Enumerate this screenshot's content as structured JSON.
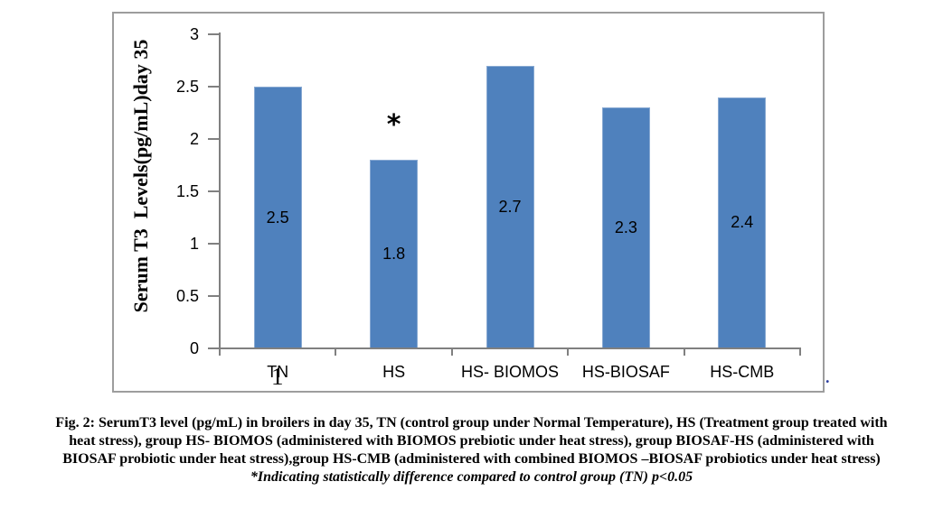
{
  "figure": {
    "caption_lines": [
      "Fig. 2: SerumT3 level (pg/mL) in broilers in day 35, TN (control group under Normal Temperature), HS (Treatment group treated with",
      "heat stress), group HS- BIOMOS (administered with BIOMOS prebiotic under heat stress), group BIOSAF-HS (administered with",
      "BIOSAF probiotic under heat stress),group HS-CMB (administered with combined BIOMOS –BIOSAF probiotics under heat stress)",
      "*Indicating statistically difference compared to control group (TN) p<0.05"
    ]
  },
  "chart_data": {
    "type": "bar",
    "title": "",
    "ylabel": "Serum T3  Levels(pg/mL)day 35",
    "xlabel": "",
    "categories": [
      "TN",
      "HS",
      "HS- BIOMOS",
      "HS-BIOSAF",
      "HS-CMB"
    ],
    "values": [
      2.5,
      1.8,
      2.7,
      2.3,
      2.4
    ],
    "data_labels": [
      "2.5",
      "1.8",
      "2.7",
      "2.3",
      "2.4"
    ],
    "ylim": [
      0,
      3
    ],
    "yticks": [
      3,
      2.5,
      2,
      1.5,
      1,
      0.5,
      0
    ],
    "ytick_labels": [
      "3",
      "2.5",
      "2",
      "1.5",
      "1",
      "0.5",
      "0"
    ],
    "grid": false,
    "legend": "none",
    "bar_color": "#4F81BD",
    "bar_edge_color": "#88a9d2",
    "axis_color": "#808080",
    "frame_color": "#9d9d9d",
    "significance_marker": {
      "marker": "*",
      "category": "HS",
      "category_index": 1
    }
  },
  "artifacts": {
    "overlay_one": "1",
    "trailing_period": "."
  }
}
